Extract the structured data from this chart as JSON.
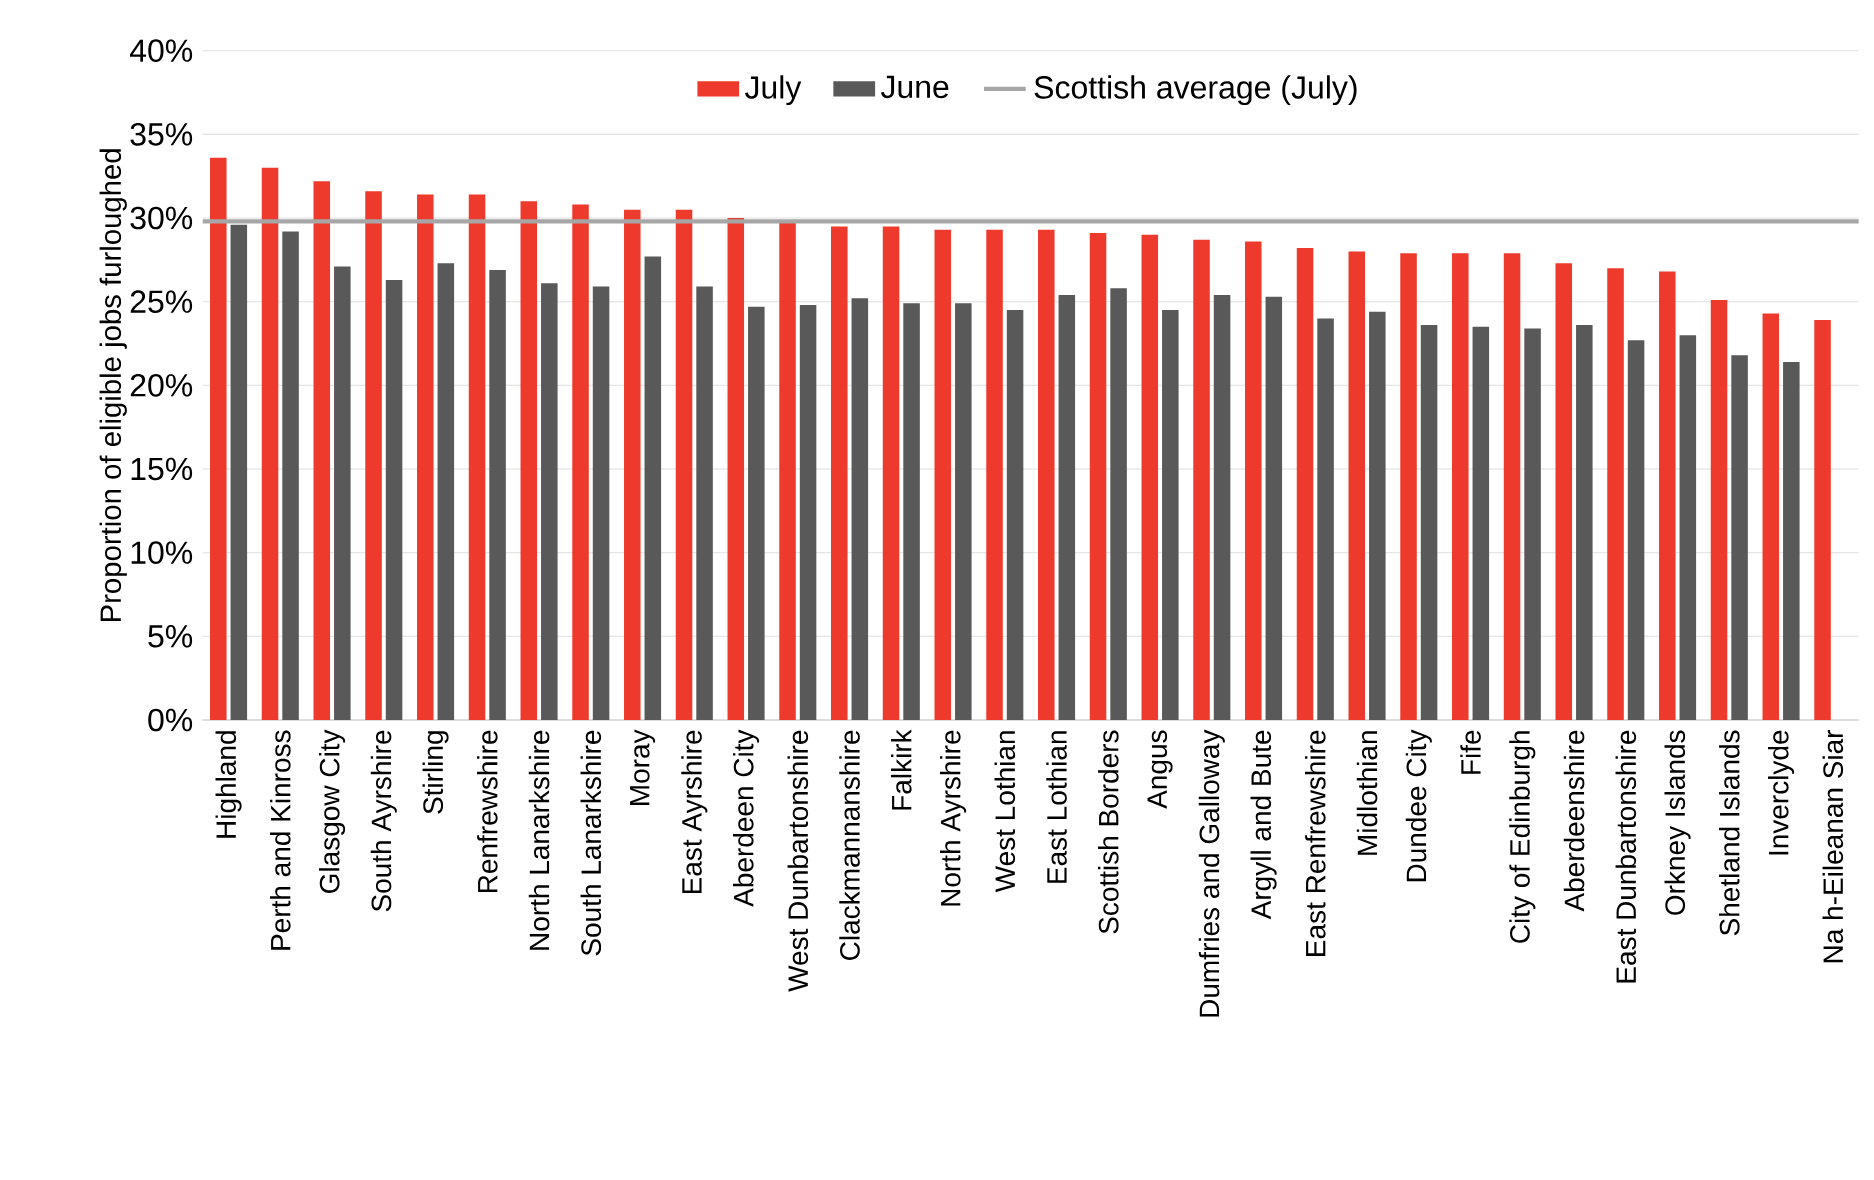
{
  "chart_data": {
    "type": "bar",
    "ylabel": "Proportion of eligible jobs furloughed",
    "categories": [
      "Highland",
      "Perth and Kinross",
      "Glasgow City",
      "South Ayrshire",
      "Stirling",
      "Renfrewshire",
      "North Lanarkshire",
      "South Lanarkshire",
      "Moray",
      "East Ayrshire",
      "Aberdeen City",
      "West Dunbartonshire",
      "Clackmannanshire",
      "Falkirk",
      "North Ayrshire",
      "West Lothian",
      "East Lothian",
      "Scottish Borders",
      "Angus",
      "Dumfries and Galloway",
      "Argyll and Bute",
      "East Renfrewshire",
      "Midlothian",
      "Dundee City",
      "Fife",
      "City of Edinburgh",
      "Aberdeenshire",
      "East Dunbartonshire",
      "Orkney Islands",
      "Shetland Islands",
      "Inverclyde",
      "Na h-Eileanan Siar"
    ],
    "series": [
      {
        "name": "July",
        "color": "#ee3a2c",
        "values": [
          33.6,
          33.0,
          32.2,
          31.6,
          31.4,
          31.4,
          31.0,
          30.8,
          30.5,
          30.5,
          30.0,
          29.7,
          29.5,
          29.5,
          29.3,
          29.3,
          29.3,
          29.1,
          29.0,
          28.7,
          28.6,
          28.2,
          28.0,
          27.9,
          27.9,
          27.9,
          27.3,
          27.0,
          26.8,
          25.1,
          24.3,
          23.9
        ]
      },
      {
        "name": "June",
        "color": "#595959",
        "values": [
          29.6,
          29.2,
          27.1,
          26.3,
          27.3,
          26.9,
          26.1,
          25.9,
          27.7,
          25.9,
          24.7,
          24.8,
          25.2,
          24.9,
          24.9,
          24.5,
          25.4,
          25.8,
          24.5,
          25.4,
          25.3,
          24.0,
          24.4,
          23.6,
          23.5,
          23.4,
          23.6,
          22.7,
          23.0,
          21.8,
          21.4,
          null
        ]
      }
    ],
    "ylim": [
      0,
      40
    ],
    "yticks": [
      {
        "value": 0,
        "label": "0%"
      },
      {
        "value": 5,
        "label": "5%"
      },
      {
        "value": 10,
        "label": "10%"
      },
      {
        "value": 15,
        "label": "15%"
      },
      {
        "value": 20,
        "label": "20%"
      },
      {
        "value": 25,
        "label": "25%"
      },
      {
        "value": 30,
        "label": "30%"
      },
      {
        "value": 35,
        "label": "35%"
      },
      {
        "value": 40,
        "label": "40%"
      }
    ],
    "ref_lines": [
      {
        "axis": "y",
        "value": 29.8,
        "label": "Scottish average (July)",
        "color": "#a6a6a6"
      }
    ],
    "grid": "y",
    "legend": "top"
  }
}
